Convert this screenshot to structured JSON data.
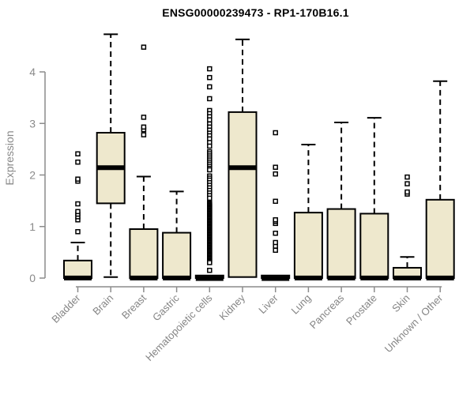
{
  "chart_data": {
    "type": "boxplot",
    "title": "ENSG00000239473 - RP1-170B16.1",
    "ylabel": "Expression",
    "xlabel": "",
    "yticks": [
      0,
      1,
      2,
      3,
      4
    ],
    "ylim": [
      0,
      4.8
    ],
    "grid": false,
    "legend": "none",
    "colors": {
      "box_fill": "#EEE8CD",
      "box_stroke": "#000000",
      "median": "#000000",
      "whisker": "#000000",
      "axis": "#8C8C8C",
      "tick_text": "#8A8A8A",
      "category_text": "#858585",
      "title_text": "#000000",
      "background": "#FFFFFF"
    },
    "categories": [
      "Bladder",
      "Brain",
      "Breast",
      "Gastric",
      "Hematopoietic cells",
      "Kidney",
      "Liver",
      "Lung",
      "Pancreas",
      "Prostate",
      "Skin",
      "Unknown / Other"
    ],
    "series": [
      {
        "name": "Bladder",
        "low": 0,
        "q1": 0,
        "median": 0.04,
        "q3": 0.34,
        "high": 0.69,
        "outliers": [
          0.9,
          1.13,
          1.19,
          1.24,
          1.29,
          1.44,
          1.88,
          1.92,
          2.25,
          2.41
        ]
      },
      {
        "name": "Brain",
        "low": 0.02,
        "q1": 1.45,
        "median": 2.18,
        "q3": 2.82,
        "high": 4.73,
        "outliers": []
      },
      {
        "name": "Breast",
        "low": 0,
        "q1": 0,
        "median": 0.04,
        "q3": 0.95,
        "high": 1.97,
        "outliers": [
          2.78,
          2.88,
          2.93,
          3.12,
          4.48
        ]
      },
      {
        "name": "Gastric",
        "low": 0,
        "q1": 0,
        "median": 0.04,
        "q3": 0.88,
        "high": 1.68,
        "outliers": []
      },
      {
        "name": "Hematopoietic cells",
        "low": 0,
        "q1": 0,
        "median": 0.03,
        "q3": 0.05,
        "high": 0.05,
        "outliers": [
          4.06,
          3.89,
          3.71,
          3.48,
          3.25,
          3.19,
          3.13,
          3.07,
          2.99,
          2.93,
          2.87,
          2.81,
          2.76,
          2.7,
          2.63,
          2.56,
          2.45,
          2.41,
          2.37,
          2.33,
          2.29,
          2.25,
          2.21,
          2.17,
          2.13,
          2.1,
          1.98,
          1.94,
          1.9,
          1.85,
          1.8,
          1.75,
          1.7,
          1.65,
          1.6,
          1.55,
          1.46,
          1.44,
          1.42,
          1.4,
          1.38,
          1.36,
          1.34,
          1.32,
          1.3,
          1.28,
          1.26,
          1.24,
          1.22,
          1.2,
          1.18,
          1.16,
          1.14,
          1.12,
          1.1,
          1.08,
          1.06,
          1.04,
          1.02,
          1.0,
          0.98,
          0.96,
          0.94,
          0.92,
          0.9,
          0.88,
          0.86,
          0.84,
          0.82,
          0.8,
          0.78,
          0.76,
          0.74,
          0.72,
          0.7,
          0.68,
          0.66,
          0.64,
          0.62,
          0.6,
          0.58,
          0.56,
          0.54,
          0.52,
          0.5,
          0.48,
          0.46,
          0.44,
          0.42,
          0.4,
          0.38,
          0.36,
          0.34,
          0.32,
          0.3,
          0.15
        ]
      },
      {
        "name": "Kidney",
        "low": 0.02,
        "q1": 0.02,
        "median": 2.18,
        "q3": 3.22,
        "high": 4.63,
        "outliers": []
      },
      {
        "name": "Liver",
        "low": 0,
        "q1": 0,
        "median": 0.03,
        "q3": 0.05,
        "high": 0.05,
        "outliers": [
          0.54,
          0.62,
          0.69,
          0.87,
          1.06,
          1.1,
          1.13,
          1.49,
          2.02,
          2.15,
          2.82
        ]
      },
      {
        "name": "Lung",
        "low": 0,
        "q1": 0,
        "median": 0.04,
        "q3": 1.27,
        "high": 2.59,
        "outliers": []
      },
      {
        "name": "Pancreas",
        "low": 0,
        "q1": 0,
        "median": 0.04,
        "q3": 1.34,
        "high": 3.02,
        "outliers": []
      },
      {
        "name": "Prostate",
        "low": 0,
        "q1": 0,
        "median": 0.04,
        "q3": 1.25,
        "high": 3.11,
        "outliers": []
      },
      {
        "name": "Skin",
        "low": 0,
        "q1": 0,
        "median": 0.04,
        "q3": 0.2,
        "high": 0.41,
        "outliers": [
          1.63,
          1.67,
          1.83,
          1.96
        ]
      },
      {
        "name": "Unknown / Other",
        "low": 0,
        "q1": 0,
        "median": 0.04,
        "q3": 1.52,
        "high": 3.82,
        "outliers": []
      }
    ]
  }
}
